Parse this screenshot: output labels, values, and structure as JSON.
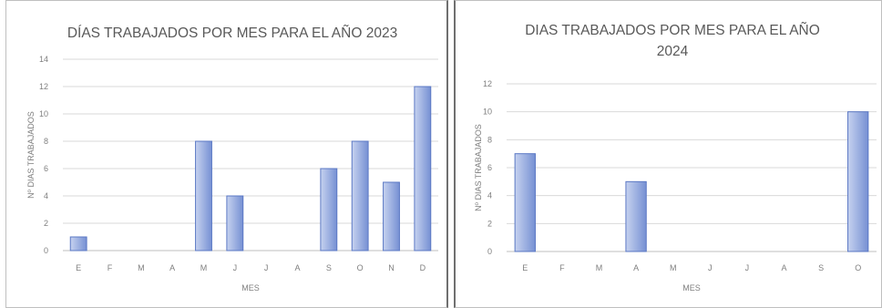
{
  "colors": {
    "bar_light": "#b4c3e8",
    "bar_dark": "#6d88cf",
    "bar_border": "#5b78c4",
    "grid": "#d9d9d9",
    "text": "#595959"
  },
  "chart_data": [
    {
      "type": "bar",
      "title_lines": [
        "DÍAS TRABAJADOS  POR MES PARA EL AÑO 2023"
      ],
      "xlabel": "MES",
      "ylabel": "Nº DIAS TRABAJADOS",
      "categories": [
        "E",
        "F",
        "M",
        "A",
        "M",
        "J",
        "J",
        "A",
        "S",
        "O",
        "N",
        "D"
      ],
      "values": [
        1,
        0,
        0,
        0,
        8,
        4,
        0,
        0,
        6,
        8,
        5,
        12
      ],
      "ylim": [
        0,
        14
      ],
      "yticks": [
        0,
        2,
        4,
        6,
        8,
        10,
        12,
        14
      ],
      "grid": true
    },
    {
      "type": "bar",
      "title_lines": [
        "DIAS TRABAJADOS  POR MES PARA EL AÑO",
        "2024"
      ],
      "xlabel": "MES",
      "ylabel": "Nº DIAS TRABAJADOS",
      "categories": [
        "E",
        "F",
        "M",
        "A",
        "M",
        "J",
        "J",
        "A",
        "S",
        "O"
      ],
      "values": [
        7,
        0,
        0,
        5,
        0,
        0,
        0,
        0,
        0,
        10
      ],
      "ylim": [
        0,
        12
      ],
      "yticks": [
        0,
        2,
        4,
        6,
        8,
        10,
        12
      ],
      "grid": true
    }
  ]
}
